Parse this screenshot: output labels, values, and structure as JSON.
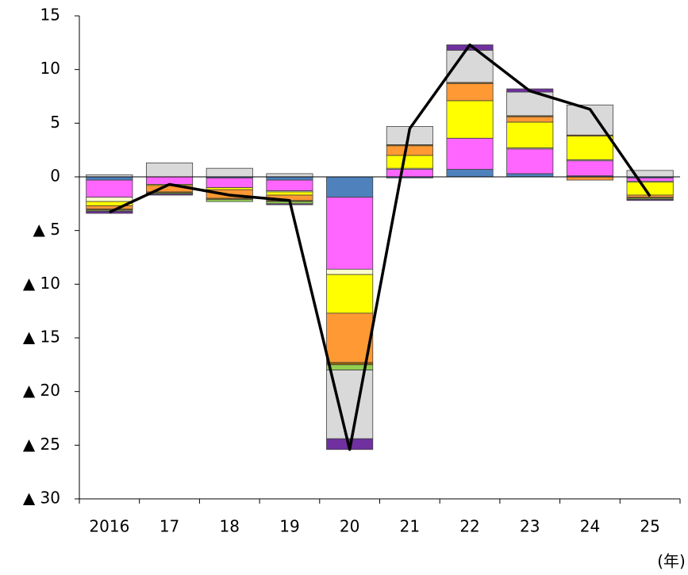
{
  "chart_data": {
    "type": "bar",
    "stacked": true,
    "categories": [
      "2016",
      "17",
      "18",
      "19",
      "20",
      "21",
      "22",
      "23",
      "24",
      "25"
    ],
    "series": [
      {
        "color": "#4f81bd",
        "values": [
          -0.3,
          0,
          -0.1,
          -0.3,
          -1.9,
          -0.1,
          0.7,
          0.3,
          0.1,
          -0.1
        ]
      },
      {
        "color": "#ff66ff",
        "values": [
          -1.6,
          -0.7,
          -0.9,
          -1.0,
          -6.7,
          0.7,
          2.9,
          2.3,
          1.4,
          -0.3
        ]
      },
      {
        "color": "#ffffcc",
        "values": [
          -0.4,
          0,
          0,
          -0.1,
          -0.5,
          0.1,
          0.0,
          0.1,
          0.1,
          -0.1
        ]
      },
      {
        "color": "#ffff00",
        "values": [
          -0.4,
          -0.1,
          -0.2,
          -0.3,
          -3.6,
          1.2,
          3.5,
          2.4,
          2.2,
          -1.2
        ]
      },
      {
        "color": "#ff9933",
        "values": [
          -0.3,
          -0.6,
          -0.8,
          -0.5,
          -4.6,
          0.9,
          1.6,
          0.5,
          -0.3,
          -0.2
        ]
      },
      {
        "color": "#996600",
        "values": [
          -0.1,
          -0.1,
          -0.1,
          -0.1,
          -0.2,
          0.1,
          0.1,
          0.1,
          0.1,
          -0.1
        ]
      },
      {
        "color": "#92d050",
        "values": [
          -0.1,
          -0.1,
          -0.2,
          -0.2,
          -0.5,
          0,
          0,
          0,
          0,
          -0.1
        ]
      },
      {
        "color": "#d9d9d9",
        "values": [
          0.2,
          1.3,
          0.8,
          0.3,
          -6.4,
          1.7,
          3.0,
          2.2,
          2.8,
          0.6
        ]
      },
      {
        "color": "#7030a0",
        "values": [
          -0.2,
          -0.1,
          0,
          -0.1,
          -1.0,
          0,
          0.5,
          0.3,
          0,
          -0.1
        ]
      },
      {
        "type": "line",
        "color": "#000000",
        "values": [
          -3.3,
          -0.7,
          -1.7,
          -2.2,
          -25.4,
          4.5,
          12.3,
          8.0,
          6.3,
          -1.8
        ]
      }
    ],
    "ylim": [
      -30,
      15
    ],
    "yticks": [
      15,
      10,
      5,
      0,
      {
        "value": -5,
        "label": "▲ 5"
      },
      {
        "value": -10,
        "label": "▲ 10"
      },
      {
        "value": -15,
        "label": "▲ 15"
      },
      {
        "value": -20,
        "label": "▲ 20"
      },
      {
        "value": -25,
        "label": "▲ 25"
      },
      {
        "value": -30,
        "label": "▲ 30"
      }
    ],
    "annotation": "(年)"
  }
}
